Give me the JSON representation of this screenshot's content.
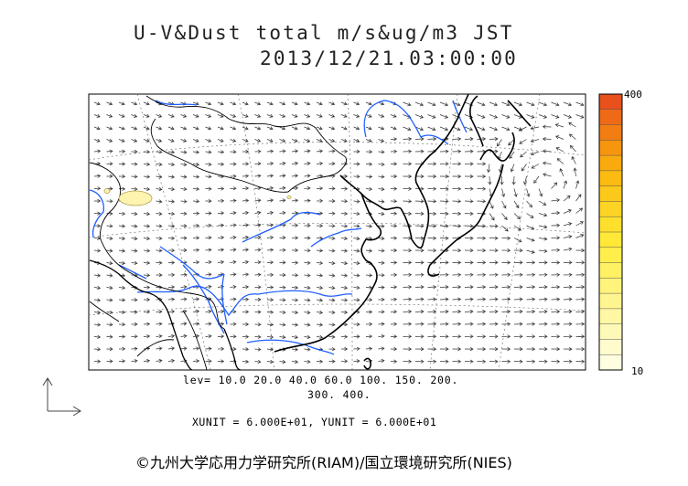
{
  "title": {
    "line1": "U-V&Dust total m/s&ug/m3 JST",
    "line2": "2013/12/21.03:00:00"
  },
  "colorbar": {
    "max_label": "400",
    "min_label": "10",
    "colors": [
      "#e8501c",
      "#ee6a16",
      "#f27d12",
      "#f6950e",
      "#f9aa0c",
      "#fbbb10",
      "#fcc81a",
      "#fdd424",
      "#fee02c",
      "#ffe838",
      "#ffee4c",
      "#fff064",
      "#fff37c",
      "#fff590",
      "#fff7a4",
      "#fff9b8",
      "#fffbcc",
      "#fffde0"
    ]
  },
  "legend": {
    "lev_line1": "lev= 10.0 20.0 40.0 60.0 100. 150. 200.",
    "lev_line2": "300. 400.",
    "units": "XUNIT = 6.000E+01, YUNIT = 6.000E+01"
  },
  "credit": "©九州大学応用力学研究所(RIAM)/国立環境研究所(NIES)",
  "map": {
    "coastline_color": "#000000",
    "river_color": "#1f5fff",
    "grid_color": "#777777",
    "arrow_color": "#333333",
    "dust_fill_color": "#fff3b0",
    "dust_edge_color": "#b0a050"
  }
}
